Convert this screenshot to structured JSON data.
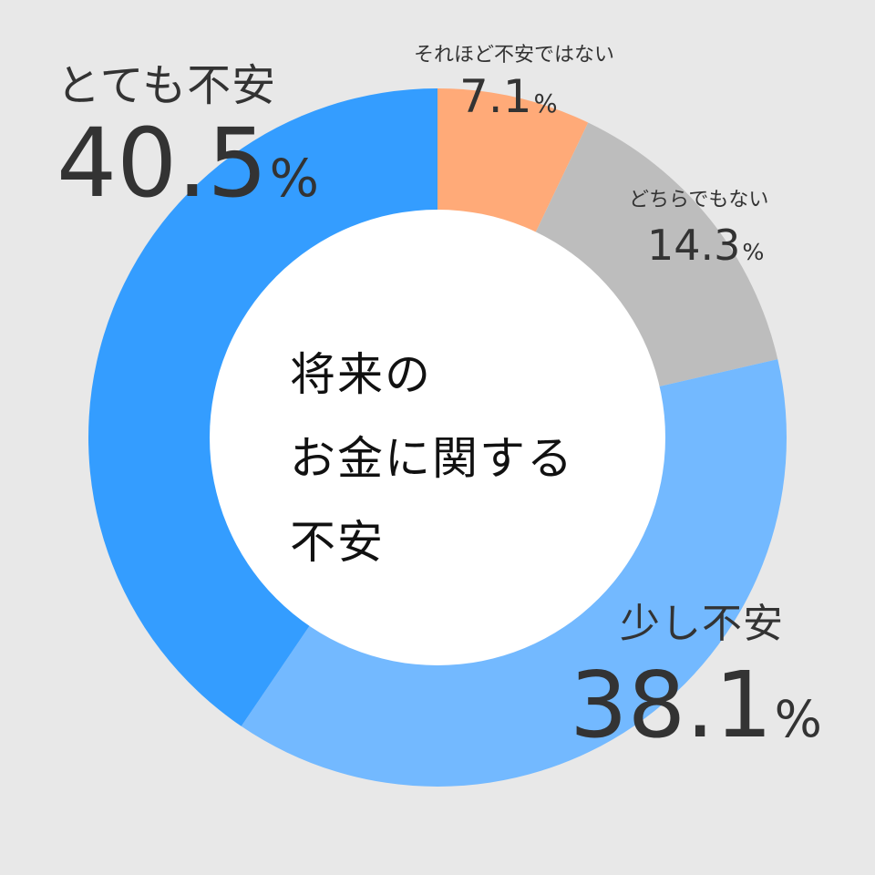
{
  "chart_data": {
    "type": "pie",
    "variant": "donut",
    "title_lines": [
      "将来の",
      "お金に関する",
      "不安"
    ],
    "percent_suffix": "%",
    "start": "top",
    "direction": "clockwise",
    "slices": [
      {
        "label": "それほど不安ではない",
        "value": 7.1,
        "value_text": "7.1",
        "color": "#ffaa78"
      },
      {
        "label": "どちらでもない",
        "value": 14.3,
        "value_text": "14.3",
        "color": "#bdbdbd"
      },
      {
        "label": "少し不安",
        "value": 38.1,
        "value_text": "38.1",
        "color": "#73b9ff"
      },
      {
        "label": "とても不安",
        "value": 40.5,
        "value_text": "40.5",
        "color": "#349dff"
      }
    ],
    "inner_color": "#ffffff",
    "background": "#e8e8e8"
  }
}
